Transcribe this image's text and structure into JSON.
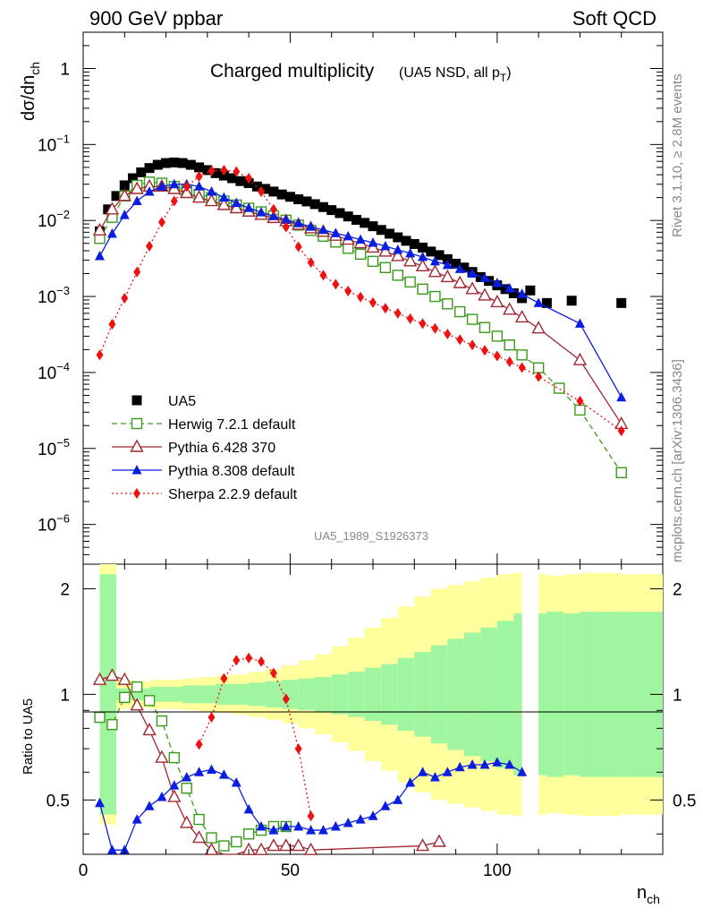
{
  "header": {
    "left": "900 GeV ppbar",
    "right": "Soft QCD"
  },
  "title": {
    "main": "Charged multiplicity",
    "sub": "(UA5 NSD, all p",
    "sub_sub": "T",
    "sub_close": ")"
  },
  "side_labels": {
    "rivet": "Rivet 3.1.10, ≥ 2.8M events",
    "mcplots": "mcplots.cern.ch [arXiv:1306.3436]"
  },
  "analysis_id": "UA5_1989_S1926373",
  "axes": {
    "ylabel_main": "dσ/dn",
    "ylabel_main_sub": "ch",
    "ylabel_ratio": "Ratio to UA5",
    "xlabel": "n",
    "xlabel_sub": "ch",
    "x_ticks": [
      "0",
      "50",
      "100"
    ],
    "y_ticks_main": [
      "1",
      "10",
      "10",
      "10",
      "10",
      "10",
      "10"
    ],
    "y_ticks_main_exp": [
      "",
      "−1",
      "−2",
      "−3",
      "−4",
      "−5",
      "−6"
    ],
    "y_ticks_ratio": [
      "2",
      "1",
      "0.5"
    ]
  },
  "colors": {
    "data": "#000000",
    "herwig": "#3a9a1a",
    "pythia6": "#a02830",
    "pythia8": "#0a1ee0",
    "sherpa": "#ee1111",
    "band_inner": "#a0f5a0",
    "band_outer": "#ffff9b"
  },
  "chart_data": {
    "type": "scatter",
    "x_scale": "linear",
    "y_scale_main": "log",
    "xlim": [
      0,
      140
    ],
    "ylim_main": [
      3e-07,
      3
    ],
    "ylim_ratio": [
      0.35,
      2.35
    ],
    "y_scale_ratio": "log",
    "legend_position": "middle-left",
    "grid": false,
    "series": [
      {
        "key": "data",
        "name": "UA5",
        "style": "marker-square",
        "x": [
          4,
          6,
          8,
          10,
          12,
          14,
          16,
          18,
          20,
          22,
          24,
          26,
          28,
          30,
          32,
          34,
          36,
          38,
          40,
          42,
          44,
          46,
          48,
          50,
          52,
          54,
          56,
          58,
          60,
          62,
          64,
          66,
          68,
          70,
          72,
          74,
          76,
          78,
          80,
          82,
          84,
          86,
          88,
          90,
          92,
          94,
          96,
          98,
          100,
          102,
          104,
          106,
          108,
          110,
          112,
          114,
          116,
          118,
          120,
          122,
          124,
          126,
          128,
          130
        ],
        "y": [
          0.0072,
          0.014,
          0.021,
          0.029,
          0.036,
          0.043,
          0.049,
          0.054,
          0.057,
          0.058,
          0.057,
          0.054,
          0.05,
          0.046,
          0.042,
          0.039,
          0.036,
          0.033,
          0.031,
          0.028,
          0.026,
          0.024,
          0.022,
          0.0205,
          0.019,
          0.0178,
          0.0164,
          0.015,
          0.0137,
          0.0125,
          0.0113,
          0.0102,
          0.0093,
          0.0084,
          0.0075,
          0.0067,
          0.006,
          0.0054,
          0.0049,
          0.0044,
          0.0039,
          0.0035,
          0.0031,
          0.0027,
          0.0024,
          0.0021,
          0.0018,
          0.0016,
          0.0014,
          0.00125,
          0.0011,
          0.00095,
          null,
          null,
          null,
          null,
          null,
          null,
          null,
          null,
          null,
          null,
          null,
          null
        ],
        "extra_x": [
          108,
          112,
          118,
          130
        ],
        "extra_y": [
          0.0012,
          0.00082,
          0.00088,
          0.00082
        ]
      },
      {
        "key": "herwig",
        "name": "Herwig 7.2.1 default",
        "style": "open-square-dashed",
        "x": [
          4,
          7,
          10,
          13,
          16,
          19,
          22,
          25,
          28,
          31,
          34,
          37,
          40,
          43,
          46,
          49,
          52,
          55,
          58,
          61,
          64,
          67,
          70,
          73,
          76,
          79,
          82,
          85,
          88,
          91,
          94,
          97,
          100,
          103,
          106,
          110,
          115,
          120,
          130
        ],
        "y": [
          0.0058,
          0.011,
          0.021,
          0.029,
          0.032,
          0.031,
          0.028,
          0.025,
          0.022,
          0.02,
          0.018,
          0.016,
          0.0145,
          0.013,
          0.0115,
          0.0101,
          0.0087,
          0.0074,
          0.0062,
          0.0052,
          0.0043,
          0.0036,
          0.0029,
          0.0024,
          0.0019,
          0.00155,
          0.00125,
          0.001,
          0.0008,
          0.00063,
          0.0005,
          0.00039,
          0.0003,
          0.00023,
          0.00017,
          0.000115,
          6.2e-05,
          3.2e-05,
          4.8e-06
        ]
      },
      {
        "key": "pythia6",
        "name": "Pythia 6.428 370",
        "style": "open-triangle-solid",
        "x": [
          4,
          7,
          10,
          13,
          16,
          19,
          22,
          25,
          28,
          31,
          34,
          37,
          40,
          43,
          46,
          49,
          52,
          55,
          58,
          61,
          64,
          67,
          70,
          73,
          76,
          79,
          82,
          85,
          88,
          91,
          94,
          97,
          100,
          103,
          106,
          110,
          120,
          130
        ],
        "y": [
          0.0074,
          0.014,
          0.021,
          0.026,
          0.028,
          0.028,
          0.026,
          0.023,
          0.02,
          0.018,
          0.016,
          0.0145,
          0.0131,
          0.0119,
          0.0108,
          0.0098,
          0.0088,
          0.0079,
          0.0071,
          0.0063,
          0.0056,
          0.005,
          0.0044,
          0.0039,
          0.0034,
          0.0029,
          0.0025,
          0.0021,
          0.0018,
          0.0015,
          0.00125,
          0.00103,
          0.00084,
          0.00067,
          0.00053,
          0.00038,
          0.000145,
          2.1e-05
        ]
      },
      {
        "key": "pythia8",
        "name": "Pythia 8.308 default",
        "style": "filled-triangle-solid",
        "x": [
          4,
          7,
          10,
          13,
          16,
          19,
          22,
          25,
          28,
          31,
          34,
          37,
          40,
          43,
          46,
          49,
          52,
          55,
          58,
          61,
          64,
          67,
          70,
          73,
          76,
          79,
          82,
          85,
          88,
          91,
          94,
          97,
          100,
          103,
          106,
          110,
          120,
          130
        ],
        "y": [
          0.0034,
          0.0067,
          0.0118,
          0.018,
          0.024,
          0.028,
          0.03,
          0.03,
          0.028,
          0.024,
          0.02,
          0.017,
          0.0146,
          0.0128,
          0.0114,
          0.0102,
          0.0092,
          0.0083,
          0.0075,
          0.0068,
          0.0062,
          0.0056,
          0.0051,
          0.0046,
          0.0041,
          0.0037,
          0.0033,
          0.0029,
          0.0026,
          0.0023,
          0.002,
          0.00175,
          0.0015,
          0.00128,
          0.00108,
          0.00082,
          0.00044,
          4.7e-05
        ]
      },
      {
        "key": "sherpa",
        "name": "Sherpa 2.2.9 default",
        "style": "filled-diamond-dotted",
        "x": [
          4,
          7,
          10,
          13,
          16,
          19,
          22,
          25,
          28,
          31,
          34,
          37,
          40,
          43,
          46,
          49,
          52,
          55,
          58,
          61,
          64,
          67,
          70,
          73,
          76,
          79,
          82,
          85,
          88,
          91,
          94,
          97,
          100,
          103,
          106,
          110,
          120,
          130
        ],
        "y": [
          0.00017,
          0.00043,
          0.00095,
          0.0021,
          0.0046,
          0.0095,
          0.018,
          0.028,
          0.038,
          0.045,
          0.046,
          0.044,
          0.036,
          0.024,
          0.014,
          0.0082,
          0.0045,
          0.0028,
          0.0019,
          0.00145,
          0.00118,
          0.00098,
          0.00083,
          0.0007,
          0.0006,
          0.00051,
          0.00044,
          0.00038,
          0.00032,
          0.00027,
          0.00023,
          0.000195,
          0.000165,
          0.000138,
          0.000116,
          8.8e-05,
          4.2e-05,
          1.7e-05
        ]
      }
    ],
    "ratio": {
      "reference": 1,
      "herwig": {
        "x": [
          4,
          7,
          10,
          13,
          16,
          19,
          22,
          25,
          28,
          31,
          34,
          37,
          40,
          43,
          46,
          49
        ],
        "y": [
          0.86,
          0.82,
          0.98,
          1.05,
          0.96,
          0.84,
          0.66,
          0.54,
          0.44,
          0.39,
          0.37,
          0.38,
          0.4,
          0.41,
          0.42,
          0.42
        ]
      },
      "pythia6": {
        "x": [
          4,
          7,
          10,
          13,
          16,
          19,
          22,
          25,
          28,
          31,
          34,
          37,
          40,
          43,
          46,
          49,
          52,
          55,
          82,
          86
        ],
        "y": [
          1.1,
          1.13,
          1.1,
          0.93,
          0.79,
          0.66,
          0.51,
          0.43,
          0.39,
          0.36,
          0.35,
          0.35,
          0.36,
          0.36,
          0.37,
          0.37,
          0.37,
          0.36,
          0.37,
          0.38
        ]
      },
      "pythia8": {
        "x": [
          4,
          7,
          10,
          13,
          16,
          19,
          22,
          25,
          28,
          31,
          34,
          37,
          40,
          43,
          46,
          49,
          52,
          55,
          58,
          61,
          64,
          67,
          70,
          73,
          76,
          79,
          82,
          85,
          88,
          91,
          94,
          97,
          100,
          103,
          106
        ],
        "y": [
          0.49,
          0.36,
          0.36,
          0.44,
          0.48,
          0.51,
          0.55,
          0.58,
          0.6,
          0.61,
          0.59,
          0.56,
          0.47,
          0.42,
          0.41,
          0.42,
          0.42,
          0.41,
          0.41,
          0.42,
          0.43,
          0.44,
          0.45,
          0.48,
          0.5,
          0.56,
          0.6,
          0.58,
          0.6,
          0.62,
          0.63,
          0.63,
          0.64,
          0.63,
          0.6
        ]
      },
      "sherpa": {
        "x": [
          28,
          31,
          34,
          37,
          40,
          43,
          46,
          49,
          52,
          55
        ],
        "y": [
          0.72,
          0.86,
          1.11,
          1.25,
          1.27,
          1.24,
          1.15,
          0.97,
          0.7,
          0.45
        ]
      },
      "band_edges": [
        4,
        8,
        12,
        16,
        20,
        24,
        28,
        32,
        36,
        40,
        44,
        48,
        52,
        56,
        60,
        64,
        68,
        72,
        76,
        80,
        84,
        88,
        92,
        96,
        100,
        104,
        106,
        110,
        112,
        116,
        120,
        124,
        130,
        140
      ],
      "band_inner_hi": [
        2.2,
        1.04,
        1.04,
        1.05,
        1.05,
        1.06,
        1.06,
        1.07,
        1.07,
        1.08,
        1.09,
        1.1,
        1.11,
        1.12,
        1.14,
        1.16,
        1.19,
        1.22,
        1.27,
        1.32,
        1.38,
        1.44,
        1.5,
        1.55,
        1.62,
        1.7,
        1.75,
        1.7,
        1.72,
        1.7,
        1.72,
        1.72,
        1.72
      ],
      "band_outer_hi": [
        2.35,
        1.1,
        1.09,
        1.1,
        1.1,
        1.11,
        1.12,
        1.13,
        1.14,
        1.16,
        1.18,
        1.21,
        1.25,
        1.3,
        1.37,
        1.45,
        1.55,
        1.65,
        1.78,
        1.9,
        2.0,
        2.05,
        2.1,
        2.15,
        2.2,
        2.22,
        2.18,
        2.2,
        2.18,
        2.2,
        2.22,
        2.22,
        2.2
      ]
    }
  }
}
